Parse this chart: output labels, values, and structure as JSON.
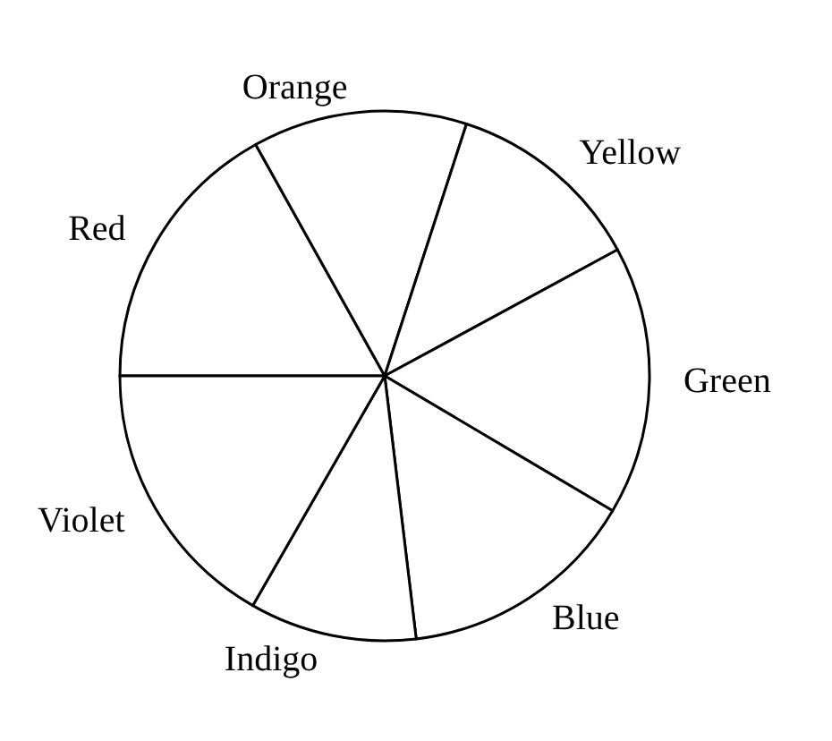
{
  "chart_data": {
    "type": "pie",
    "categories": [
      "Red",
      "Orange",
      "Yellow",
      "Green",
      "Blue",
      "Indigo",
      "Violet"
    ],
    "values": [
      16.9,
      13.1,
      12.1,
      16.4,
      14.6,
      10.2,
      16.7
    ],
    "colors": [
      "#ffffff",
      "#ffffff",
      "#ffffff",
      "#ffffff",
      "#ffffff",
      "#ffffff",
      "#ffffff"
    ]
  }
}
